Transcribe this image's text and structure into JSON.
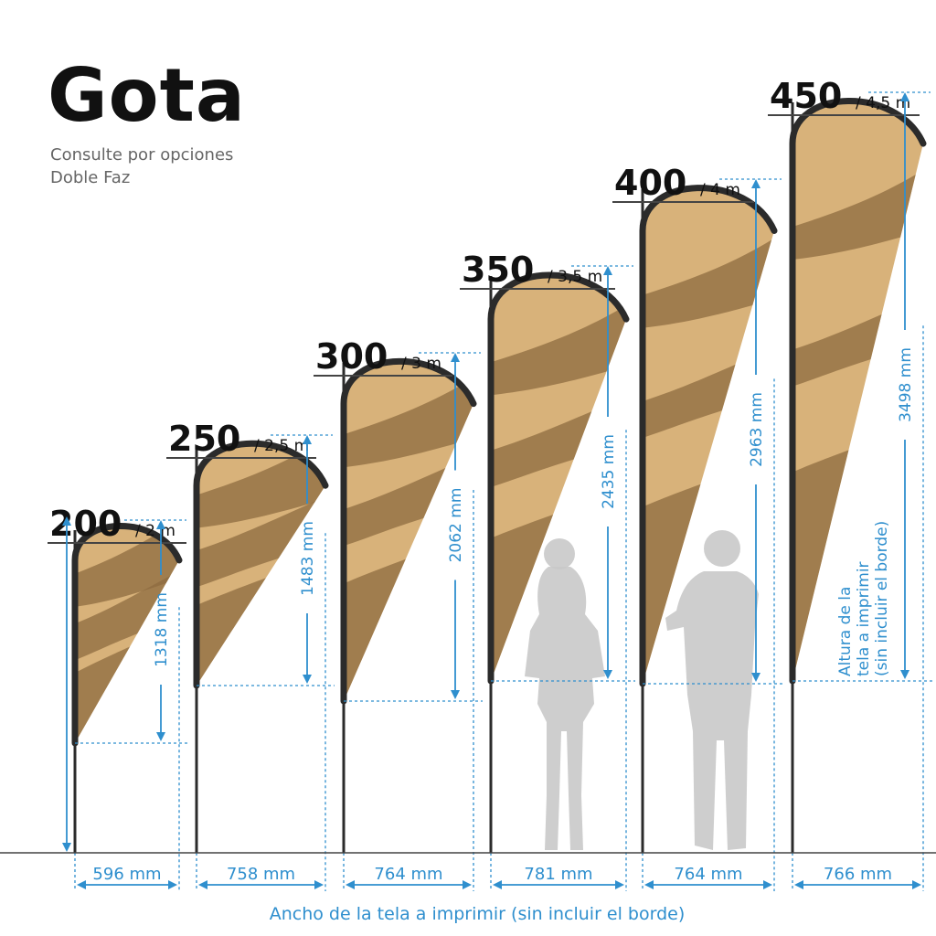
{
  "header": {
    "title": "Gota",
    "subtitle_line1": "Consulte por opciones",
    "subtitle_line2": "Doble Faz"
  },
  "flags": [
    {
      "size": "200",
      "meters": "/ 2 m",
      "height_label": "1318 mm",
      "width_label": "596 mm"
    },
    {
      "size": "250",
      "meters": "/ 2,5 m",
      "height_label": "1483 mm",
      "width_label": "758 mm"
    },
    {
      "size": "300",
      "meters": "/ 3 m",
      "height_label": "2062 mm",
      "width_label": "764 mm"
    },
    {
      "size": "350",
      "meters": "/ 3,5 m",
      "height_label": "2435 mm",
      "width_label": "781 mm"
    },
    {
      "size": "400",
      "meters": "/ 4 m",
      "height_label": "2963 mm",
      "width_label": "764 mm"
    },
    {
      "size": "450",
      "meters": "/ 4,5 m",
      "height_label": "3498 mm",
      "width_label": "766 mm"
    }
  ],
  "height_note": {
    "line1": "Altura de la",
    "line2": "tela a imprimir",
    "line3": "(sin incluir el borde)"
  },
  "width_caption": "Ancho de la tela a imprimir (sin incluir el borde)",
  "colors": {
    "fabric": "#d8b27a",
    "fabric_band": "#8e6b40",
    "border": "#2b2b2b",
    "dimension": "#2f8fce",
    "silhouette": "#c9c9c9"
  }
}
